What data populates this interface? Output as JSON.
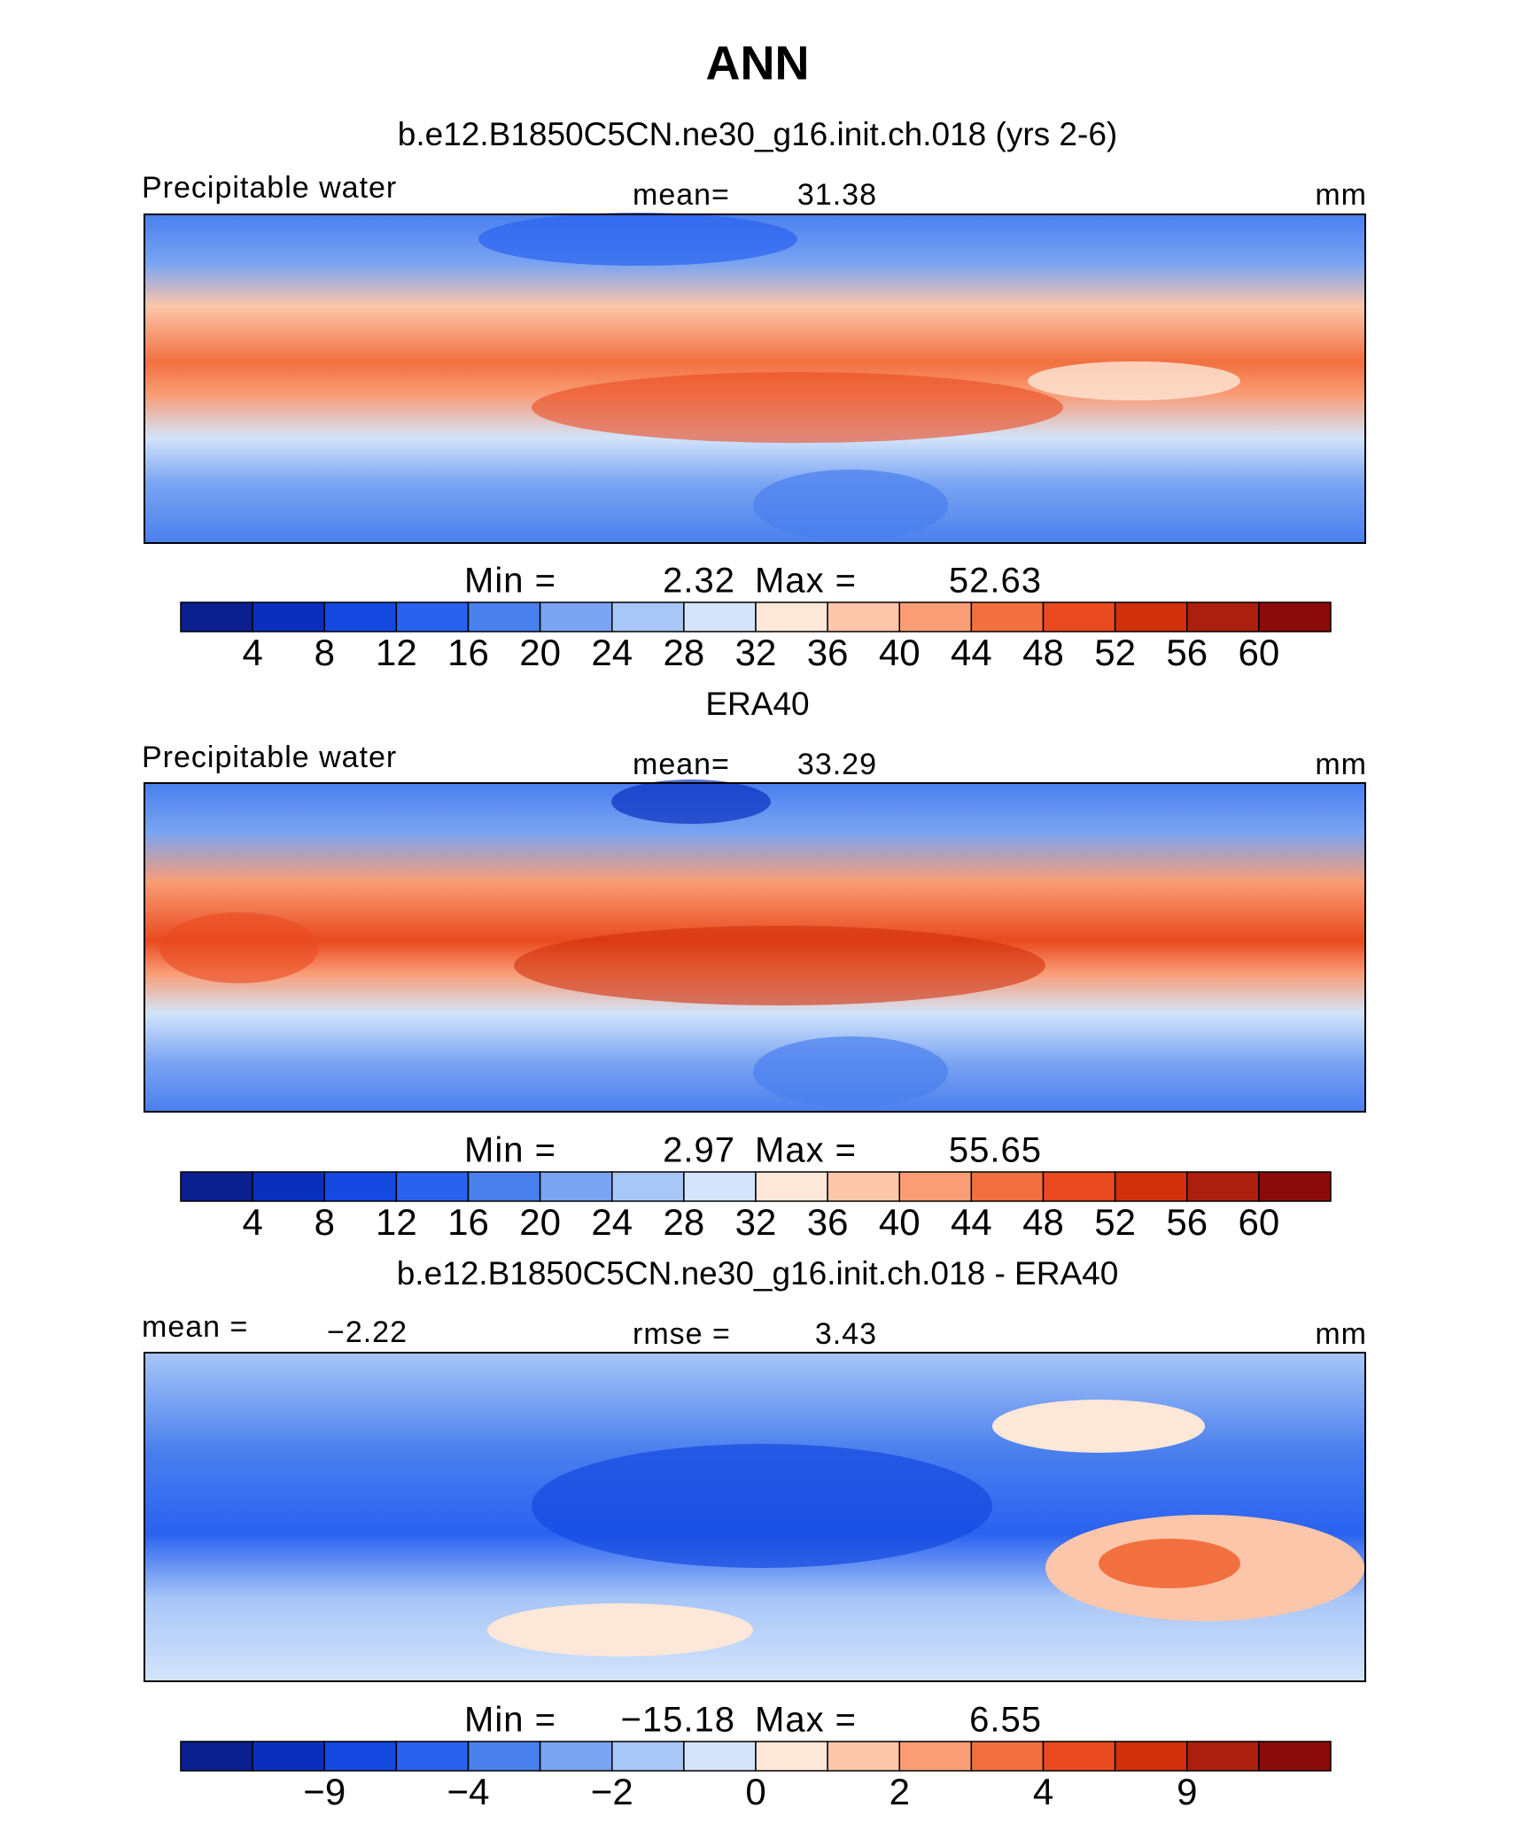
{
  "title": "ANN",
  "colorbar_colors": [
    "#0b1f8f",
    "#0a2fbf",
    "#1448e0",
    "#2a62f0",
    "#4a7fee",
    "#7aa4f2",
    "#a8c6f7",
    "#d3e4fb",
    "#fde7d8",
    "#fcc6aa",
    "#f99d77",
    "#f2703f",
    "#ea4a1f",
    "#d0300c",
    "#ac1e0d",
    "#8b0b0b"
  ],
  "panels": [
    {
      "title": "b.e12.B1850C5CN.ne30_g16.init.ch.018 (yrs 2-6)",
      "left_label": "Precipitable water",
      "center_label": "mean=",
      "center_value": 31.38,
      "unit": "mm",
      "min_label": "Min =",
      "min": 2.32,
      "max_label": "Max =",
      "max": 52.63,
      "ticks": [
        4,
        8,
        12,
        16,
        20,
        24,
        28,
        32,
        36,
        40,
        44,
        48,
        52,
        56,
        60
      ]
    },
    {
      "title": "ERA40",
      "left_label": "Precipitable water",
      "center_label": "mean=",
      "center_value": 33.29,
      "unit": "mm",
      "min_label": "Min =",
      "min": 2.97,
      "max_label": "Max =",
      "max": 55.65,
      "ticks": [
        4,
        8,
        12,
        16,
        20,
        24,
        28,
        32,
        36,
        40,
        44,
        48,
        52,
        56,
        60
      ]
    },
    {
      "title": "b.e12.B1850C5CN.ne30_g16.init.ch.018 - ERA40",
      "left_label": "mean =",
      "left_value": "−2.22",
      "center_label": "rmse =",
      "center_value": 3.43,
      "unit": "mm",
      "min_label": "Min =",
      "min": "−15.18",
      "max_label": "Max =",
      "max": 6.55,
      "ticks": [
        {
          "value": -9,
          "label": "−9"
        },
        {
          "value": -4,
          "label": "−4"
        },
        {
          "value": -2,
          "label": "−2"
        },
        0,
        2,
        4,
        9
      ]
    }
  ]
}
